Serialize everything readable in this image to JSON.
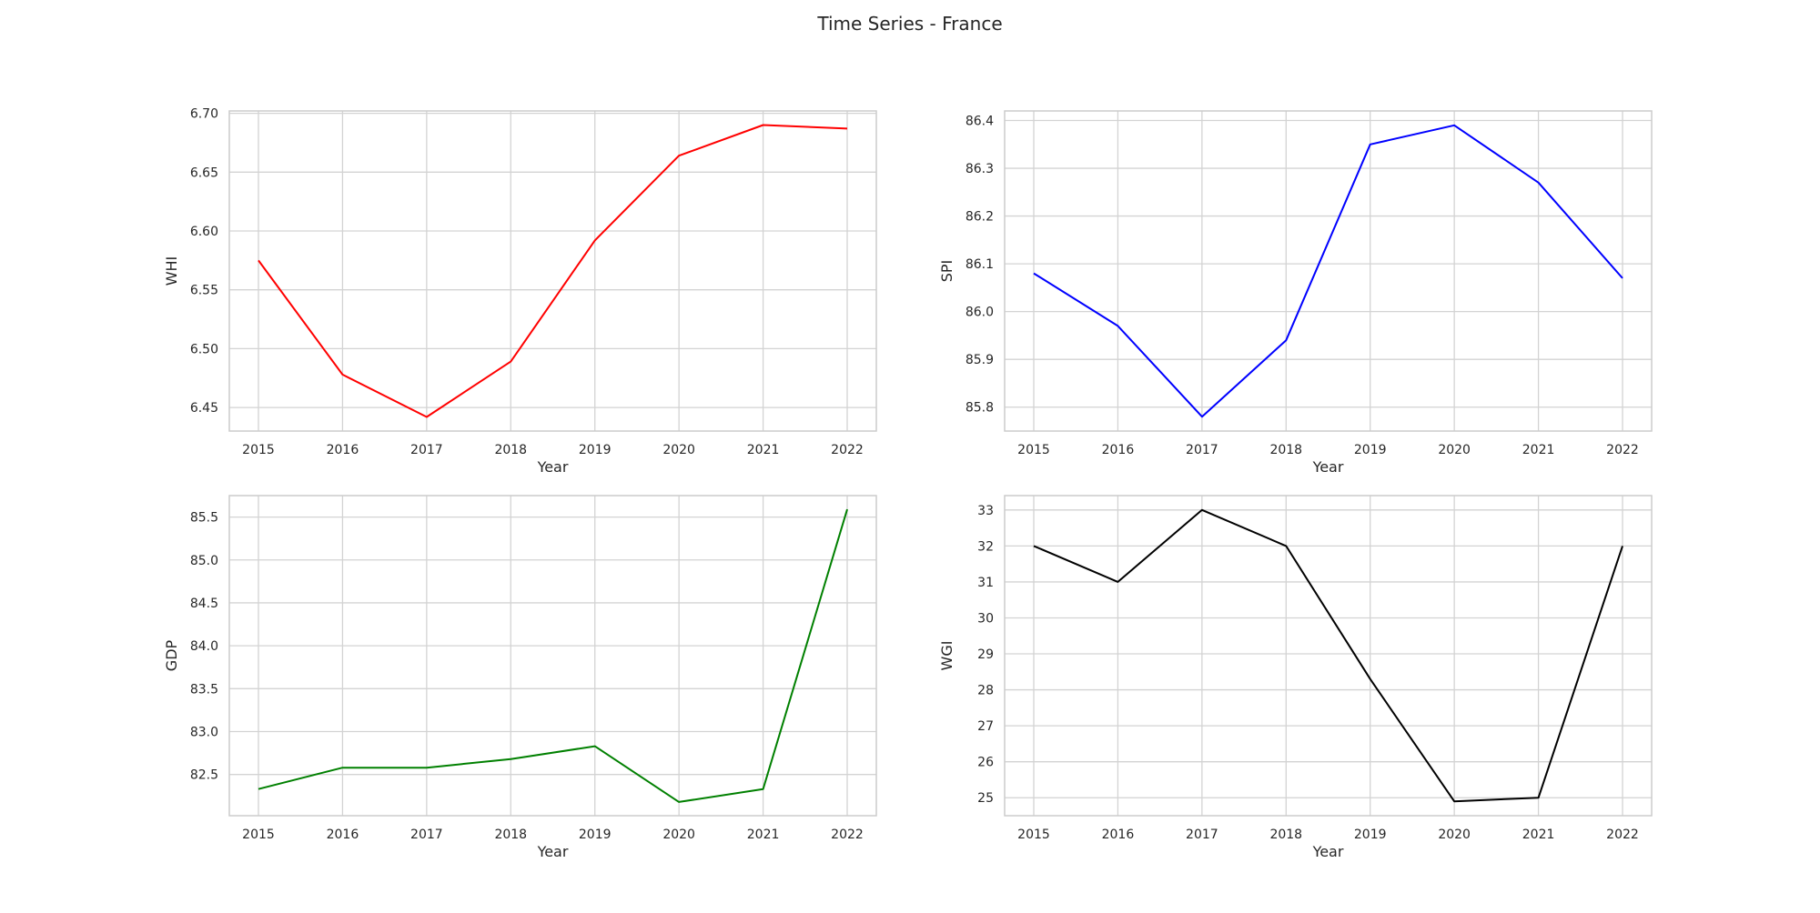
{
  "figure": {
    "title": "Time Series - France"
  },
  "chart_data": [
    {
      "type": "line",
      "x": [
        2015,
        2016,
        2017,
        2018,
        2019,
        2020,
        2021,
        2022
      ],
      "values": [
        6.575,
        6.478,
        6.442,
        6.489,
        6.592,
        6.664,
        6.69,
        6.687
      ],
      "xlabel": "Year",
      "ylabel": "WHI",
      "ylim": [
        6.43,
        6.702
      ],
      "yticks": [
        6.45,
        6.5,
        6.55,
        6.6,
        6.65,
        6.7
      ],
      "ytick_decimals": 2,
      "color": "#ff0000",
      "grid": true
    },
    {
      "type": "line",
      "x": [
        2015,
        2016,
        2017,
        2018,
        2019,
        2020,
        2021,
        2022
      ],
      "values": [
        86.08,
        85.97,
        85.78,
        85.94,
        86.35,
        86.39,
        86.27,
        86.07
      ],
      "xlabel": "Year",
      "ylabel": "SPI",
      "ylim": [
        85.75,
        86.42
      ],
      "yticks": [
        85.8,
        85.9,
        86.0,
        86.1,
        86.2,
        86.3,
        86.4
      ],
      "ytick_decimals": 1,
      "color": "#0000ff",
      "grid": true
    },
    {
      "type": "line",
      "x": [
        2015,
        2016,
        2017,
        2018,
        2019,
        2020,
        2021,
        2022
      ],
      "values": [
        82.33,
        82.58,
        82.58,
        82.68,
        82.83,
        82.18,
        82.33,
        85.59
      ],
      "xlabel": "Year",
      "ylabel": "GDP",
      "ylim": [
        82.02,
        85.75
      ],
      "yticks": [
        82.5,
        83.0,
        83.5,
        84.0,
        84.5,
        85.0,
        85.5
      ],
      "ytick_decimals": 1,
      "color": "#008000",
      "grid": true
    },
    {
      "type": "line",
      "x": [
        2015,
        2016,
        2017,
        2018,
        2019,
        2020,
        2021,
        2022
      ],
      "values": [
        32,
        31,
        33,
        32,
        28.3,
        24.9,
        25.0,
        32
      ],
      "xlabel": "Year",
      "ylabel": "WGI",
      "ylim": [
        24.5,
        33.4
      ],
      "yticks": [
        25,
        26,
        27,
        28,
        29,
        30,
        31,
        32,
        33
      ],
      "ytick_decimals": 0,
      "color": "#000000",
      "grid": true
    }
  ]
}
